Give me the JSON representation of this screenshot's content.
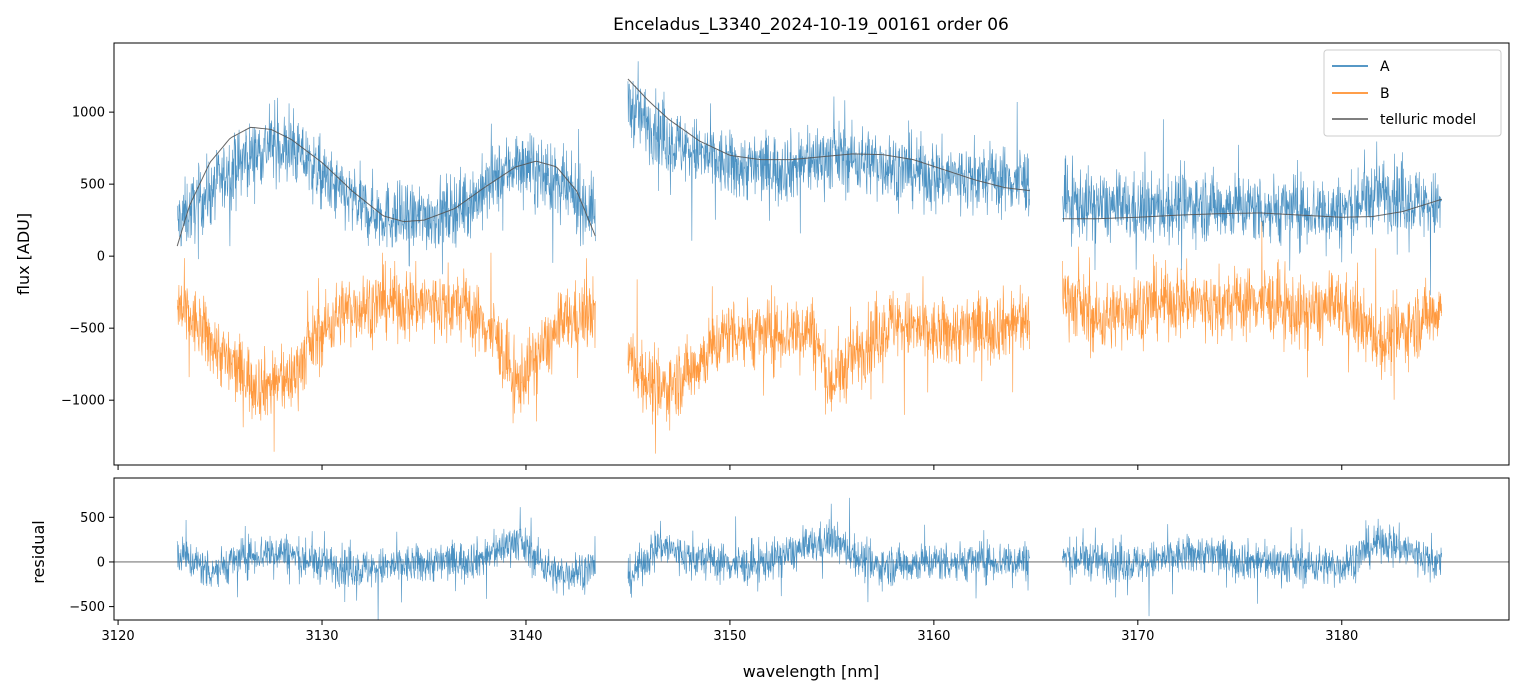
{
  "chart_data": [
    {
      "type": "line",
      "title": "Enceladus_L3340_2024-10-19_00161  order 06",
      "xlabel": "",
      "ylabel": "flux [ADU]",
      "xlim": [
        3119.8,
        3188.2
      ],
      "ylim": [
        -1450,
        1480
      ],
      "yticks": [
        -1000,
        -500,
        0,
        500,
        1000
      ],
      "ytick_labels": [
        "−1000",
        "−500",
        "0",
        "500",
        "1000"
      ],
      "legend": {
        "placement": "top-right",
        "entries": [
          "A",
          "B",
          "telluric model"
        ]
      },
      "segments": [
        [
          3122.9,
          3143.4
        ],
        [
          3145.0,
          3164.7
        ],
        [
          3166.3,
          3184.9
        ]
      ],
      "series": [
        {
          "name": "A",
          "color": "#1f77b4",
          "kind": "noisy",
          "base_points": [
            [
              3122.9,
              230
            ],
            [
              3124.0,
              380
            ],
            [
              3126.0,
              650
            ],
            [
              3127.5,
              780
            ],
            [
              3129.0,
              700
            ],
            [
              3130.5,
              480
            ],
            [
              3132.0,
              330
            ],
            [
              3134.0,
              250
            ],
            [
              3136.0,
              300
            ],
            [
              3137.5,
              400
            ],
            [
              3139.5,
              650
            ],
            [
              3141.0,
              550
            ],
            [
              3143.4,
              300
            ],
            [
              3145.0,
              1050
            ],
            [
              3147.0,
              800
            ],
            [
              3150.0,
              620
            ],
            [
              3153.0,
              620
            ],
            [
              3155.0,
              700
            ],
            [
              3157.0,
              650
            ],
            [
              3160.0,
              560
            ],
            [
              3164.7,
              520
            ],
            [
              3166.3,
              380
            ],
            [
              3170.0,
              320
            ],
            [
              3173.0,
              360
            ],
            [
              3176.0,
              330
            ],
            [
              3180.0,
              310
            ],
            [
              3182.0,
              450
            ],
            [
              3184.9,
              330
            ]
          ]
        },
        {
          "name": "B",
          "color": "#ff7f0e",
          "kind": "noisy",
          "base_points": [
            [
              3122.9,
              -350
            ],
            [
              3124.0,
              -500
            ],
            [
              3125.5,
              -750
            ],
            [
              3127.0,
              -900
            ],
            [
              3128.5,
              -850
            ],
            [
              3129.5,
              -600
            ],
            [
              3131.0,
              -380
            ],
            [
              3133.0,
              -320
            ],
            [
              3135.0,
              -330
            ],
            [
              3137.0,
              -350
            ],
            [
              3138.5,
              -550
            ],
            [
              3139.5,
              -900
            ],
            [
              3140.5,
              -700
            ],
            [
              3142.0,
              -450
            ],
            [
              3143.4,
              -400
            ],
            [
              3145.0,
              -700
            ],
            [
              3146.5,
              -950
            ],
            [
              3148.0,
              -800
            ],
            [
              3150.0,
              -520
            ],
            [
              3152.0,
              -550
            ],
            [
              3154.0,
              -500
            ],
            [
              3155.0,
              -900
            ],
            [
              3156.0,
              -700
            ],
            [
              3158.0,
              -450
            ],
            [
              3160.0,
              -550
            ],
            [
              3162.0,
              -500
            ],
            [
              3164.7,
              -450
            ],
            [
              3166.3,
              -250
            ],
            [
              3168.0,
              -450
            ],
            [
              3170.0,
              -350
            ],
            [
              3172.0,
              -300
            ],
            [
              3174.0,
              -350
            ],
            [
              3176.0,
              -300
            ],
            [
              3178.0,
              -400
            ],
            [
              3180.0,
              -350
            ],
            [
              3182.0,
              -600
            ],
            [
              3184.9,
              -350
            ]
          ]
        },
        {
          "name": "telluric model",
          "color": "#555555",
          "kind": "smooth",
          "points": [
            [
              3122.9,
              70
            ],
            [
              3123.5,
              350
            ],
            [
              3124.5,
              650
            ],
            [
              3125.5,
              820
            ],
            [
              3126.5,
              895
            ],
            [
              3127.5,
              880
            ],
            [
              3128.5,
              810
            ],
            [
              3130.0,
              650
            ],
            [
              3131.5,
              450
            ],
            [
              3133.0,
              280
            ],
            [
              3134.0,
              240
            ],
            [
              3135.0,
              250
            ],
            [
              3136.5,
              330
            ],
            [
              3138.0,
              480
            ],
            [
              3139.5,
              620
            ],
            [
              3140.5,
              660
            ],
            [
              3141.5,
              620
            ],
            [
              3142.5,
              450
            ],
            [
              3143.4,
              140
            ],
            [
              3145.0,
              1230
            ],
            [
              3146.0,
              1080
            ],
            [
              3147.0,
              950
            ],
            [
              3148.5,
              800
            ],
            [
              3150.0,
              700
            ],
            [
              3151.5,
              670
            ],
            [
              3153.0,
              670
            ],
            [
              3154.5,
              690
            ],
            [
              3156.0,
              710
            ],
            [
              3157.5,
              705
            ],
            [
              3159.0,
              670
            ],
            [
              3160.5,
              600
            ],
            [
              3162.0,
              530
            ],
            [
              3163.5,
              475
            ],
            [
              3164.7,
              455
            ],
            [
              3166.3,
              260
            ],
            [
              3168.0,
              260
            ],
            [
              3170.0,
              270
            ],
            [
              3172.0,
              285
            ],
            [
              3174.0,
              295
            ],
            [
              3176.0,
              300
            ],
            [
              3178.0,
              285
            ],
            [
              3180.0,
              270
            ],
            [
              3181.5,
              275
            ],
            [
              3183.0,
              310
            ],
            [
              3184.9,
              395
            ]
          ]
        }
      ]
    },
    {
      "type": "line",
      "title": "",
      "xlabel": "wavelength [nm]",
      "ylabel": "residual",
      "xlim": [
        3119.8,
        3188.2
      ],
      "ylim": [
        -650,
        940
      ],
      "xticks": [
        3120,
        3130,
        3140,
        3150,
        3160,
        3170,
        3180
      ],
      "xtick_labels": [
        "3120",
        "3130",
        "3140",
        "3150",
        "3160",
        "3170",
        "3180"
      ],
      "yticks": [
        -500,
        0,
        500
      ],
      "ytick_labels": [
        "−500",
        "0",
        "500"
      ],
      "reference_line": 0,
      "segments": [
        [
          3122.9,
          3143.4
        ],
        [
          3145.0,
          3164.7
        ],
        [
          3166.3,
          3184.9
        ]
      ],
      "series": [
        {
          "name": "residual",
          "color": "#1f77b4",
          "kind": "noisy",
          "base_points": [
            [
              3122.9,
              100
            ],
            [
              3124.5,
              -100
            ],
            [
              3126.5,
              80
            ],
            [
              3128.0,
              120
            ],
            [
              3129.5,
              0
            ],
            [
              3132.0,
              -80
            ],
            [
              3135.0,
              -20
            ],
            [
              3138.0,
              50
            ],
            [
              3139.5,
              250
            ],
            [
              3141.5,
              -150
            ],
            [
              3143.4,
              -50
            ],
            [
              3145.0,
              -200
            ],
            [
              3146.5,
              200
            ],
            [
              3148.0,
              50
            ],
            [
              3151.0,
              -50
            ],
            [
              3155.0,
              250
            ],
            [
              3157.0,
              -50
            ],
            [
              3160.0,
              0
            ],
            [
              3164.7,
              20
            ],
            [
              3166.3,
              50
            ],
            [
              3170.0,
              -20
            ],
            [
              3173.0,
              100
            ],
            [
              3176.0,
              0
            ],
            [
              3180.0,
              -50
            ],
            [
              3182.0,
              250
            ],
            [
              3184.9,
              -30
            ]
          ]
        }
      ]
    }
  ],
  "colors": {
    "A": "#1f77b4",
    "B": "#ff7f0e",
    "model": "#555555",
    "axes": "#000000"
  }
}
